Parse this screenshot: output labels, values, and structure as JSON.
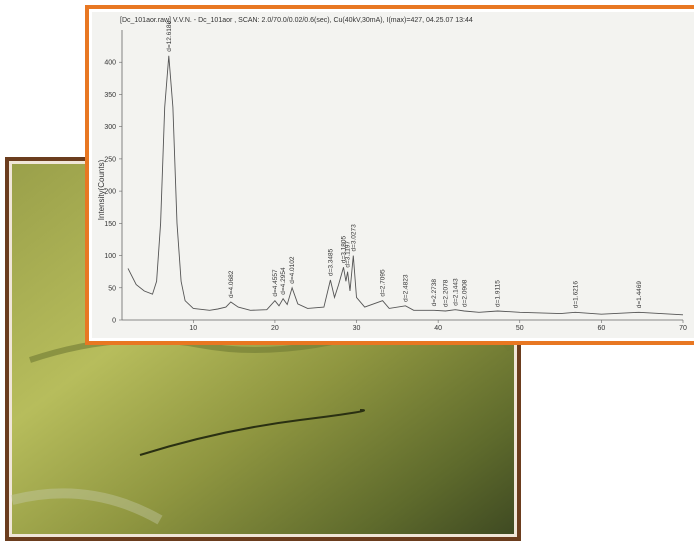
{
  "chart_data": {
    "type": "line",
    "title": "[Dc_101aor.raw] V.V.N. - Dc_101aor , SCAN: 2.0/70.0/0.02/0.6(sec), Cu(40kV,30mA), I(max)=427, 04.25.07 13:44",
    "y_label": "Intensity(Counts)",
    "x": [
      2,
      3,
      4,
      5,
      5.5,
      6,
      6.5,
      7,
      7.5,
      8,
      8.5,
      9,
      10,
      12,
      13,
      14,
      14.6,
      15.5,
      17,
      19,
      20,
      20.5,
      21,
      21.5,
      22.1,
      22.8,
      24,
      26,
      26.8,
      27.3,
      27.8,
      28.4,
      28.7,
      28.9,
      29.2,
      29.6,
      30,
      31,
      33.2,
      34,
      36,
      37,
      39.5,
      40.9,
      42.1,
      43.2,
      45,
      47.3,
      50,
      55,
      56.8,
      60,
      64.6,
      70
    ],
    "values": [
      80,
      55,
      45,
      40,
      60,
      150,
      330,
      410,
      330,
      150,
      60,
      30,
      18,
      15,
      17,
      20,
      28,
      20,
      15,
      16,
      30,
      22,
      33,
      24,
      50,
      25,
      18,
      20,
      62,
      35,
      55,
      82,
      60,
      75,
      45,
      100,
      35,
      20,
      30,
      18,
      22,
      15,
      15,
      14,
      16,
      14,
      12,
      14,
      12,
      10,
      12,
      9,
      12,
      8
    ],
    "color": "#555555",
    "annotations": [
      {
        "label": "d=12.6186",
        "x": 7.0
      },
      {
        "label": "d=4.0682",
        "x": 14.6
      },
      {
        "label": "d=4.4557",
        "x": 20.0
      },
      {
        "label": "d=4.2954",
        "x": 21.0
      },
      {
        "label": "d=4.0102",
        "x": 22.1
      },
      {
        "label": "d=3.3485",
        "x": 26.8
      },
      {
        "label": "d=3.1805",
        "x": 28.4
      },
      {
        "label": "d=3.1197",
        "x": 28.9
      },
      {
        "label": "d=3.0273",
        "x": 29.6
      },
      {
        "label": "d=2.7095",
        "x": 33.2
      },
      {
        "label": "d=2.4823",
        "x": 36.0
      },
      {
        "label": "d=2.2738",
        "x": 39.5
      },
      {
        "label": "d=2.2078",
        "x": 40.9
      },
      {
        "label": "d=2.1443",
        "x": 42.1
      },
      {
        "label": "d=2.0908",
        "x": 43.2
      },
      {
        "label": "d=1.9115",
        "x": 47.3
      },
      {
        "label": "d=1.6216",
        "x": 56.8
      },
      {
        "label": "d=1.4469",
        "x": 64.6
      }
    ],
    "xlim": [
      2,
      70
    ],
    "xticks": [
      10,
      20,
      30,
      40,
      50,
      60,
      70
    ],
    "ylim": [
      0,
      450
    ],
    "yticks": [
      0,
      50,
      100,
      150,
      200,
      250,
      300,
      350,
      400
    ]
  }
}
